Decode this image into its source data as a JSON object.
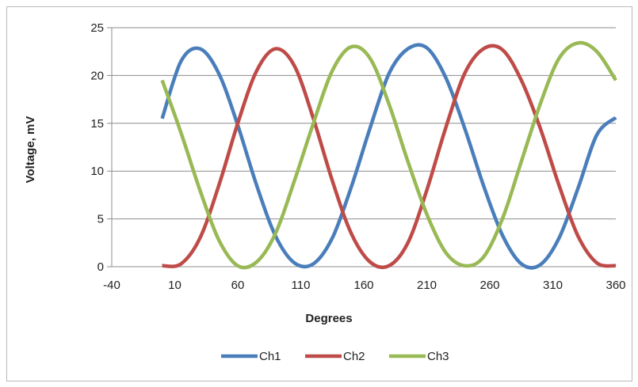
{
  "chart_data": {
    "type": "line",
    "title": "",
    "xlabel": "Degrees",
    "ylabel": "Voltage, mV",
    "xlim": [
      -40,
      360
    ],
    "ylim": [
      0,
      25
    ],
    "xticks": [
      -40,
      10,
      60,
      110,
      160,
      210,
      260,
      310,
      360
    ],
    "yticks": [
      0,
      5,
      10,
      15,
      20,
      25
    ],
    "grid": "horizontal",
    "legend": "bottom",
    "series": [
      {
        "name": "Ch1",
        "color": "#4a7ebb",
        "x": [
          0,
          15,
          30,
          45,
          60,
          75,
          90,
          105,
          120,
          135,
          150,
          165,
          180,
          195,
          210,
          225,
          240,
          255,
          270,
          285,
          300,
          315,
          330,
          345,
          360
        ],
        "y": [
          15.5,
          21.5,
          22.8,
          20.2,
          14.8,
          8.5,
          3.2,
          0.4,
          0.3,
          3.0,
          8.3,
          14.5,
          20.2,
          22.8,
          22.9,
          19.8,
          14.5,
          8.5,
          3.3,
          0.3,
          0.2,
          3.0,
          8.2,
          13.8,
          15.6
        ]
      },
      {
        "name": "Ch2",
        "color": "#be4b48",
        "x": [
          0,
          15,
          30,
          45,
          60,
          75,
          90,
          105,
          120,
          135,
          150,
          165,
          180,
          195,
          210,
          225,
          240,
          255,
          270,
          285,
          300,
          315,
          330,
          345,
          360
        ],
        "y": [
          0.1,
          0.3,
          3.0,
          8.5,
          15.0,
          20.5,
          22.8,
          21.0,
          15.5,
          9.0,
          3.5,
          0.5,
          0.1,
          2.5,
          8.0,
          14.5,
          20.2,
          22.8,
          22.7,
          19.5,
          14.5,
          8.5,
          3.2,
          0.4,
          0.1
        ]
      },
      {
        "name": "Ch3",
        "color": "#98b954",
        "x": [
          0,
          15,
          30,
          45,
          60,
          75,
          90,
          105,
          120,
          135,
          150,
          165,
          180,
          195,
          210,
          225,
          240,
          255,
          270,
          285,
          300,
          315,
          330,
          345,
          360
        ],
        "y": [
          19.5,
          14.0,
          8.0,
          2.8,
          0.1,
          0.5,
          3.5,
          9.0,
          15.0,
          20.5,
          23.0,
          21.8,
          17.0,
          11.0,
          5.5,
          1.5,
          0.1,
          1.0,
          5.0,
          11.0,
          17.0,
          21.8,
          23.4,
          22.5,
          19.5
        ]
      }
    ]
  }
}
